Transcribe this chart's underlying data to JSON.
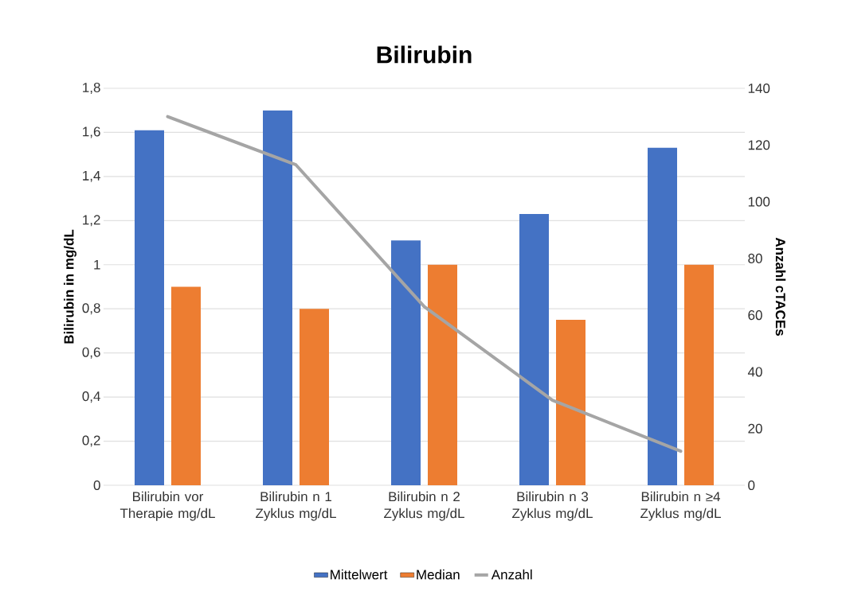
{
  "chart_data": {
    "type": "bar",
    "title": "Bilirubin",
    "ylabel": "Bilirubin in mg/dL",
    "y2label": "Anzahl cTACEs",
    "categories": [
      "Bilirubin vor Therapie mg/dL",
      "Bilirubin n 1 Zyklus mg/dL",
      "Bilirubin n 2 Zyklus mg/dL",
      "Bilirubin n 3 Zyklus mg/dL",
      "Bilirubin n ≥4 Zyklus mg/dL"
    ],
    "series": [
      {
        "name": "Mittelwert",
        "color": "#4472c4",
        "values": [
          1.61,
          1.7,
          1.11,
          1.23,
          1.53
        ]
      },
      {
        "name": "Median",
        "color": "#ed7d31",
        "values": [
          0.9,
          0.8,
          1.0,
          0.75,
          1.0
        ]
      },
      {
        "name": "Anzahl",
        "type": "line",
        "axis": "y2",
        "color": "#a5a5a5",
        "values": [
          130,
          113,
          63,
          30,
          12
        ]
      }
    ],
    "ylim": [
      0,
      1.8
    ],
    "yticks": [
      0,
      {
        "value": 0.2,
        "label": "0,2"
      },
      {
        "value": 0.4,
        "label": "0,4"
      },
      {
        "value": 0.6,
        "label": "0,6"
      },
      {
        "value": 0.8,
        "label": "0,8"
      },
      1,
      {
        "value": 1.2,
        "label": "1,2"
      },
      {
        "value": 1.4,
        "label": "1,4"
      },
      {
        "value": 1.6,
        "label": "1,6"
      },
      {
        "value": 1.8,
        "label": "1,8"
      }
    ],
    "y2lim": [
      0,
      140
    ],
    "y2ticks": [
      0,
      20,
      40,
      60,
      80,
      100,
      120,
      140
    ],
    "grid": "y",
    "legend": "bottom"
  }
}
